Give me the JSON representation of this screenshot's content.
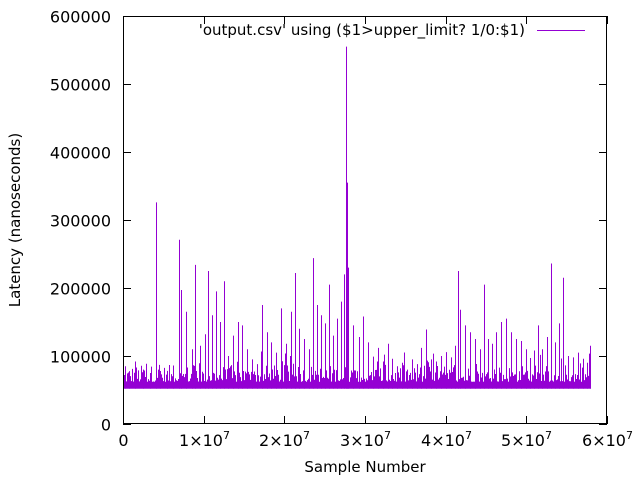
{
  "chart_data": {
    "type": "line",
    "title": "",
    "xlabel": "Sample Number",
    "ylabel": "Latency (nanoseconds)",
    "xlim": [
      0,
      60000000
    ],
    "ylim": [
      0,
      600000
    ],
    "x_ticks": [
      {
        "value": 0,
        "label": "0",
        "mantissa": "",
        "exponent": ""
      },
      {
        "value": 10000000,
        "label": "1×10^7",
        "mantissa": "1×10",
        "exponent": "7"
      },
      {
        "value": 20000000,
        "label": "2×10^7",
        "mantissa": "2×10",
        "exponent": "7"
      },
      {
        "value": 30000000,
        "label": "3×10^7",
        "mantissa": "3×10",
        "exponent": "7"
      },
      {
        "value": 40000000,
        "label": "4×10^7",
        "mantissa": "4×10",
        "exponent": "7"
      },
      {
        "value": 50000000,
        "label": "5×10^7",
        "mantissa": "5×10",
        "exponent": "7"
      },
      {
        "value": 60000000,
        "label": "6×10^7",
        "mantissa": "6×10",
        "exponent": "7"
      }
    ],
    "y_ticks": [
      {
        "value": 0,
        "label": "0"
      },
      {
        "value": 100000,
        "label": "100000"
      },
      {
        "value": 200000,
        "label": "200000"
      },
      {
        "value": 300000,
        "label": "300000"
      },
      {
        "value": 400000,
        "label": "400000"
      },
      {
        "value": 500000,
        "label": "500000"
      },
      {
        "value": 600000,
        "label": "600000"
      }
    ],
    "grid": false,
    "legend_position": "top-right",
    "series": [
      {
        "name": "'output.csv' using ($1>upper_limit? 1/0:$1)",
        "color": "#9400d3",
        "baseline": 52000,
        "band_top": 62000,
        "x_range": [
          0,
          58000000
        ],
        "points": [
          [
            200000,
            85000
          ],
          [
            800000,
            70000
          ],
          [
            1500000,
            92000
          ],
          [
            2500000,
            80000
          ],
          [
            3400000,
            75000
          ],
          [
            4100000,
            326000
          ],
          [
            4600000,
            78000
          ],
          [
            5500000,
            72000
          ],
          [
            6200000,
            86000
          ],
          [
            6900000,
            271000
          ],
          [
            7200000,
            197000
          ],
          [
            7800000,
            165000
          ],
          [
            8500000,
            110000
          ],
          [
            8900000,
            234000
          ],
          [
            9500000,
            115000
          ],
          [
            10200000,
            132000
          ],
          [
            10500000,
            225000
          ],
          [
            11000000,
            160000
          ],
          [
            11500000,
            195000
          ],
          [
            12000000,
            150000
          ],
          [
            12500000,
            210000
          ],
          [
            13000000,
            100000
          ],
          [
            13600000,
            130000
          ],
          [
            14200000,
            150000
          ],
          [
            14800000,
            145000
          ],
          [
            15400000,
            110000
          ],
          [
            16000000,
            95000
          ],
          [
            16600000,
            88000
          ],
          [
            17200000,
            175000
          ],
          [
            17800000,
            135000
          ],
          [
            18400000,
            120000
          ],
          [
            19000000,
            105000
          ],
          [
            19600000,
            170000
          ],
          [
            20200000,
            118000
          ],
          [
            20800000,
            165000
          ],
          [
            21300000,
            222000
          ],
          [
            21800000,
            140000
          ],
          [
            22400000,
            125000
          ],
          [
            23000000,
            110000
          ],
          [
            23600000,
            244000
          ],
          [
            24100000,
            175000
          ],
          [
            24600000,
            160000
          ],
          [
            25000000,
            148000
          ],
          [
            25500000,
            205000
          ],
          [
            26000000,
            130000
          ],
          [
            26500000,
            155000
          ],
          [
            27000000,
            180000
          ],
          [
            27400000,
            220000
          ],
          [
            27600000,
            555000
          ],
          [
            27750000,
            355000
          ],
          [
            27950000,
            230000
          ],
          [
            28500000,
            145000
          ],
          [
            29200000,
            128000
          ],
          [
            29800000,
            158000
          ],
          [
            30400000,
            120000
          ],
          [
            31000000,
            99000
          ],
          [
            31600000,
            112000
          ],
          [
            32200000,
            92000
          ],
          [
            32800000,
            118000
          ],
          [
            33400000,
            96000
          ],
          [
            34000000,
            85000
          ],
          [
            34600000,
            90000
          ],
          [
            35200000,
            80000
          ],
          [
            35800000,
            95000
          ],
          [
            36400000,
            88000
          ],
          [
            37000000,
            112000
          ],
          [
            37600000,
            139000
          ],
          [
            38200000,
            95000
          ],
          [
            38800000,
            92000
          ],
          [
            39400000,
            100000
          ],
          [
            40000000,
            85000
          ],
          [
            40600000,
            98000
          ],
          [
            41200000,
            115000
          ],
          [
            41500000,
            225000
          ],
          [
            41800000,
            168000
          ],
          [
            42400000,
            145000
          ],
          [
            43000000,
            135000
          ],
          [
            43600000,
            125000
          ],
          [
            44200000,
            110000
          ],
          [
            44700000,
            205000
          ],
          [
            45200000,
            125000
          ],
          [
            45800000,
            118000
          ],
          [
            46300000,
            135000
          ],
          [
            46900000,
            150000
          ],
          [
            47500000,
            155000
          ],
          [
            48100000,
            135000
          ],
          [
            48700000,
            125000
          ],
          [
            49300000,
            122000
          ],
          [
            49900000,
            110000
          ],
          [
            50400000,
            85000
          ],
          [
            51000000,
            108000
          ],
          [
            51500000,
            145000
          ],
          [
            52000000,
            110000
          ],
          [
            52600000,
            128000
          ],
          [
            53000000,
            236000
          ],
          [
            53500000,
            120000
          ],
          [
            54100000,
            148000
          ],
          [
            54600000,
            215000
          ],
          [
            55200000,
            100000
          ],
          [
            55800000,
            98000
          ],
          [
            56400000,
            105000
          ],
          [
            57000000,
            96000
          ],
          [
            57500000,
            90000
          ],
          [
            57900000,
            115000
          ]
        ]
      }
    ]
  }
}
